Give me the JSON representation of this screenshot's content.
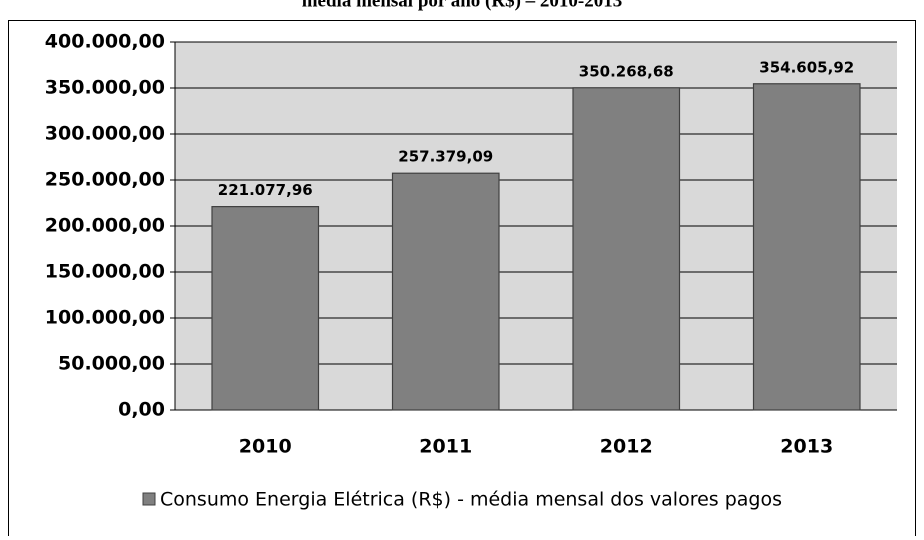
{
  "chart_data": {
    "type": "bar",
    "title": "média mensal por ano (R$) – 2010-2013",
    "categories": [
      "2010",
      "2011",
      "2012",
      "2013"
    ],
    "series": [
      {
        "name": "Consumo Energia Elétrica (R$) - média mensal dos valores pagos",
        "color": "#808080",
        "values": [
          221077.96,
          257379.09,
          350268.68,
          354605.92
        ],
        "value_labels": [
          "221.077,96",
          "257.379,09",
          "350.268,68",
          "354.605,92"
        ]
      }
    ],
    "ylim": [
      0,
      400000
    ],
    "yticks": [
      {
        "value": 0,
        "label": "0,00"
      },
      {
        "value": 50000,
        "label": "50.000,00"
      },
      {
        "value": 100000,
        "label": "100.000,00"
      },
      {
        "value": 150000,
        "label": "150.000,00"
      },
      {
        "value": 200000,
        "label": "200.000,00"
      },
      {
        "value": 250000,
        "label": "250.000,00"
      },
      {
        "value": 300000,
        "label": "300.000,00"
      },
      {
        "value": 350000,
        "label": "350.000,00"
      },
      {
        "value": 400000,
        "label": "400.000,00"
      }
    ],
    "grid": true,
    "legend": "bottom"
  }
}
